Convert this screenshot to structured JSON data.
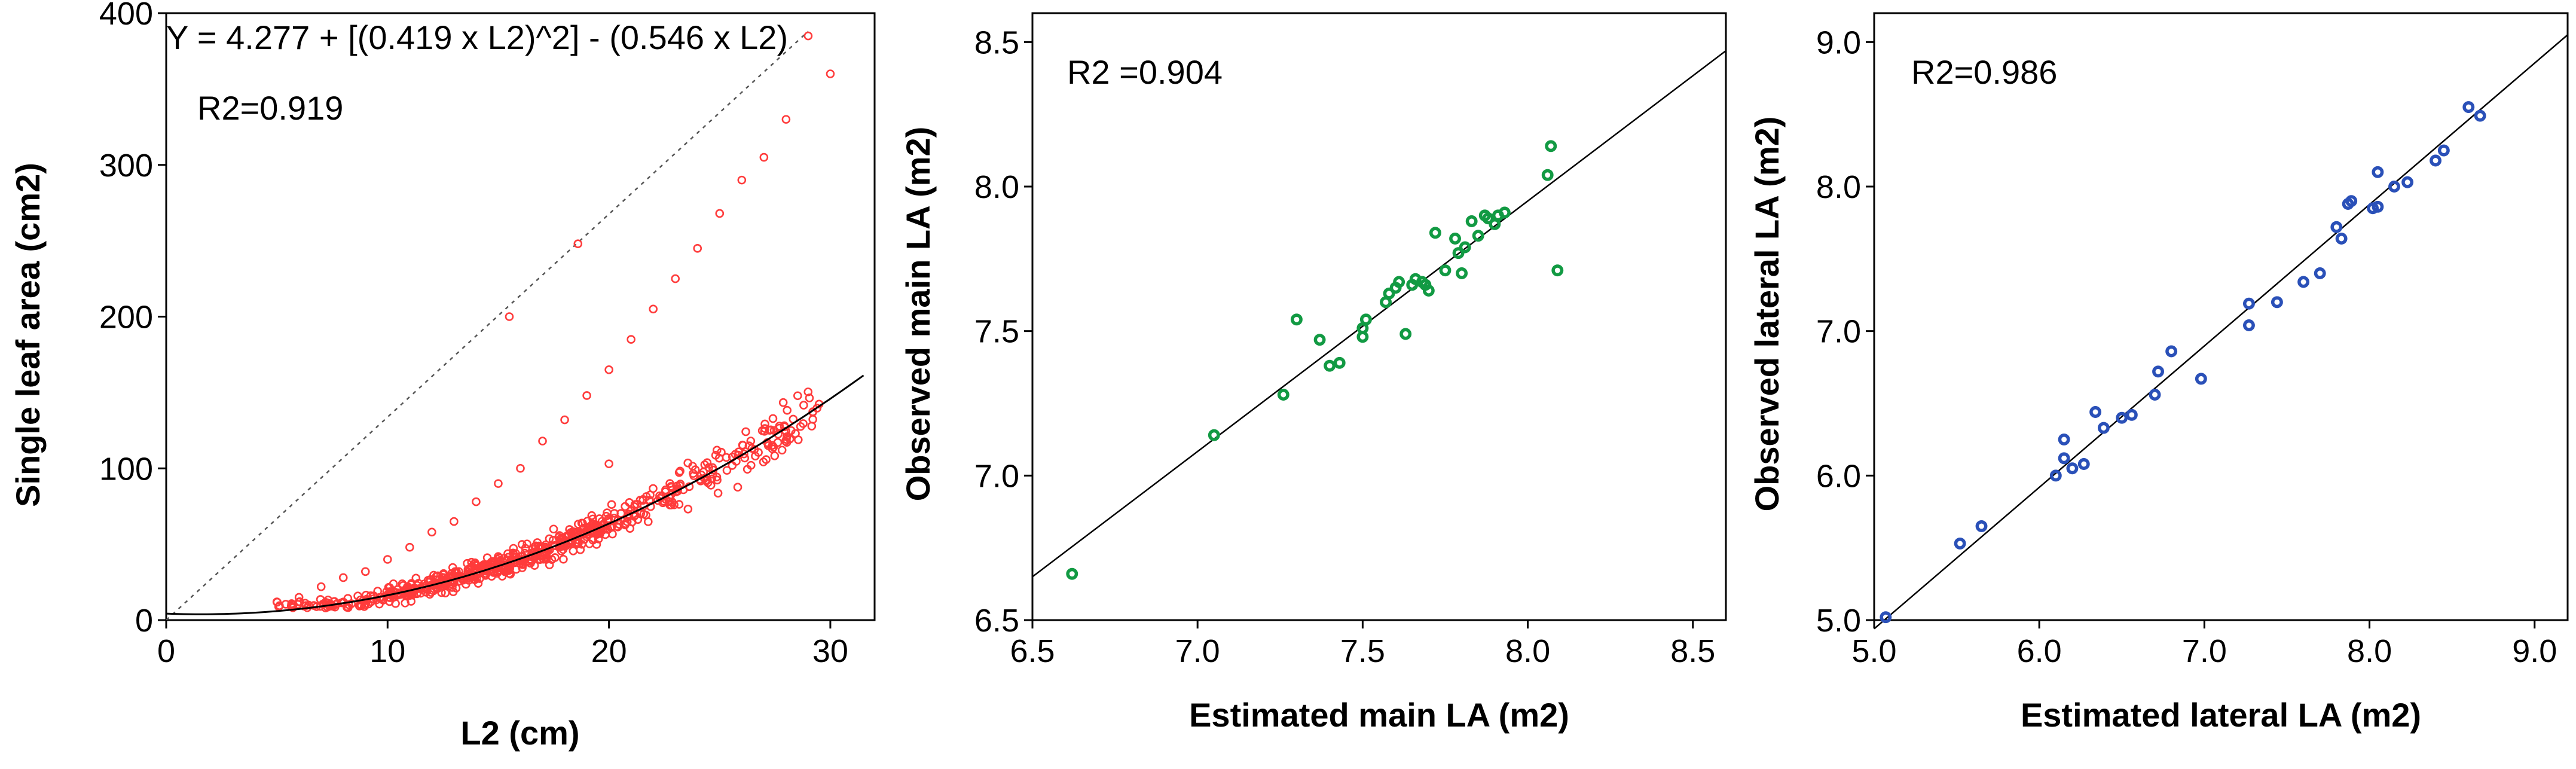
{
  "chart_data": [
    {
      "type": "scatter",
      "panel": "left",
      "xlabel": "L2 (cm)",
      "ylabel": "Single leaf area (cm2)",
      "xlim": [
        0,
        32
      ],
      "ylim": [
        0,
        400
      ],
      "xticks": [
        0,
        10,
        20,
        30
      ],
      "yticks": [
        0,
        100,
        200,
        300,
        400
      ],
      "equation": "Y = 4.277 + [(0.419 x L2)^2] - (0.546 x L2)",
      "r2_label": "R2=0.919",
      "fit": {
        "type": "quadratic",
        "a": 4.277,
        "b": 0.419,
        "c": 0.546,
        "x_range": [
          0,
          31.5
        ]
      },
      "reference_line": {
        "style": "dotted",
        "from": [
          0,
          0
        ],
        "to": [
          29,
          388
        ]
      },
      "marker_color": "#ff3b3b",
      "series_note": "approx. 700 observations; x from ~5 to ~30 cm, scattered around the fitted curve",
      "sample_points": [
        [
          5,
          12
        ],
        [
          6,
          15
        ],
        [
          7,
          22
        ],
        [
          8,
          28
        ],
        [
          9,
          32
        ],
        [
          10,
          40
        ],
        [
          11,
          48
        ],
        [
          12,
          58
        ],
        [
          13,
          65
        ],
        [
          14,
          78
        ],
        [
          15,
          90
        ],
        [
          16,
          100
        ],
        [
          17,
          118
        ],
        [
          18,
          132
        ],
        [
          19,
          148
        ],
        [
          20,
          165
        ],
        [
          21,
          185
        ],
        [
          22,
          205
        ],
        [
          23,
          225
        ],
        [
          24,
          245
        ],
        [
          25,
          268
        ],
        [
          26,
          290
        ],
        [
          27,
          305
        ],
        [
          28,
          330
        ],
        [
          29,
          385
        ],
        [
          30,
          360
        ],
        [
          15.5,
          200
        ],
        [
          18.6,
          248
        ],
        [
          17.5,
          60
        ],
        [
          20,
          103
        ]
      ]
    },
    {
      "type": "scatter",
      "panel": "middle",
      "xlabel": "Estimated main LA (m2)",
      "ylabel": "Observed main LA (m2)",
      "xlim": [
        6.5,
        8.6
      ],
      "ylim": [
        6.5,
        8.6
      ],
      "xticks": [
        6.5,
        7.0,
        7.5,
        8.0,
        8.5
      ],
      "yticks": [
        6.5,
        7.0,
        7.5,
        8.0,
        8.5
      ],
      "r2_label": "R2 =0.904",
      "fit": {
        "type": "linear",
        "from": [
          6.5,
          6.65
        ],
        "to": [
          8.6,
          8.47
        ]
      },
      "marker_color": "#129a43",
      "points": [
        [
          6.62,
          6.66
        ],
        [
          7.05,
          7.14
        ],
        [
          7.26,
          7.28
        ],
        [
          7.3,
          7.54
        ],
        [
          7.37,
          7.47
        ],
        [
          7.4,
          7.38
        ],
        [
          7.43,
          7.39
        ],
        [
          7.5,
          7.48
        ],
        [
          7.5,
          7.51
        ],
        [
          7.51,
          7.54
        ],
        [
          7.57,
          7.6
        ],
        [
          7.58,
          7.63
        ],
        [
          7.6,
          7.65
        ],
        [
          7.61,
          7.67
        ],
        [
          7.63,
          7.49
        ],
        [
          7.65,
          7.66
        ],
        [
          7.66,
          7.68
        ],
        [
          7.68,
          7.67
        ],
        [
          7.69,
          7.66
        ],
        [
          7.7,
          7.64
        ],
        [
          7.72,
          7.84
        ],
        [
          7.75,
          7.71
        ],
        [
          7.78,
          7.82
        ],
        [
          7.79,
          7.77
        ],
        [
          7.8,
          7.7
        ],
        [
          7.81,
          7.79
        ],
        [
          7.83,
          7.88
        ],
        [
          7.85,
          7.83
        ],
        [
          7.87,
          7.9
        ],
        [
          7.88,
          7.89
        ],
        [
          7.9,
          7.87
        ],
        [
          7.91,
          7.9
        ],
        [
          7.93,
          7.91
        ],
        [
          8.06,
          8.04
        ],
        [
          8.07,
          8.14
        ],
        [
          8.09,
          7.71
        ]
      ]
    },
    {
      "type": "scatter",
      "panel": "right",
      "xlabel": "Estimated lateral LA (m2)",
      "ylabel": "Observed lateral LA (m2)",
      "xlim": [
        5.0,
        9.2
      ],
      "ylim": [
        5.0,
        9.2
      ],
      "xticks": [
        5.0,
        6.0,
        7.0,
        8.0,
        9.0
      ],
      "yticks": [
        5.0,
        6.0,
        7.0,
        8.0,
        9.0
      ],
      "r2_label": "R2=0.986",
      "fit": {
        "type": "linear",
        "from": [
          5.0,
          4.94
        ],
        "to": [
          9.2,
          9.05
        ]
      },
      "marker_color": "#2a50b8",
      "points": [
        [
          5.07,
          5.02
        ],
        [
          5.52,
          5.53
        ],
        [
          5.65,
          5.65
        ],
        [
          6.1,
          6.0
        ],
        [
          6.15,
          6.25
        ],
        [
          6.15,
          6.12
        ],
        [
          6.2,
          6.05
        ],
        [
          6.27,
          6.08
        ],
        [
          6.34,
          6.44
        ],
        [
          6.39,
          6.33
        ],
        [
          6.5,
          6.4
        ],
        [
          6.56,
          6.42
        ],
        [
          6.7,
          6.56
        ],
        [
          6.72,
          6.72
        ],
        [
          6.8,
          6.86
        ],
        [
          6.98,
          6.67
        ],
        [
          7.27,
          7.19
        ],
        [
          7.27,
          7.04
        ],
        [
          7.44,
          7.2
        ],
        [
          7.6,
          7.34
        ],
        [
          7.7,
          7.4
        ],
        [
          7.8,
          7.72
        ],
        [
          7.83,
          7.64
        ],
        [
          7.87,
          7.88
        ],
        [
          7.89,
          7.9
        ],
        [
          8.02,
          7.85
        ],
        [
          8.05,
          7.86
        ],
        [
          8.05,
          8.1
        ],
        [
          8.15,
          8.0
        ],
        [
          8.23,
          8.03
        ],
        [
          8.4,
          8.18
        ],
        [
          8.45,
          8.25
        ],
        [
          8.6,
          8.55
        ],
        [
          8.67,
          8.49
        ]
      ]
    }
  ]
}
